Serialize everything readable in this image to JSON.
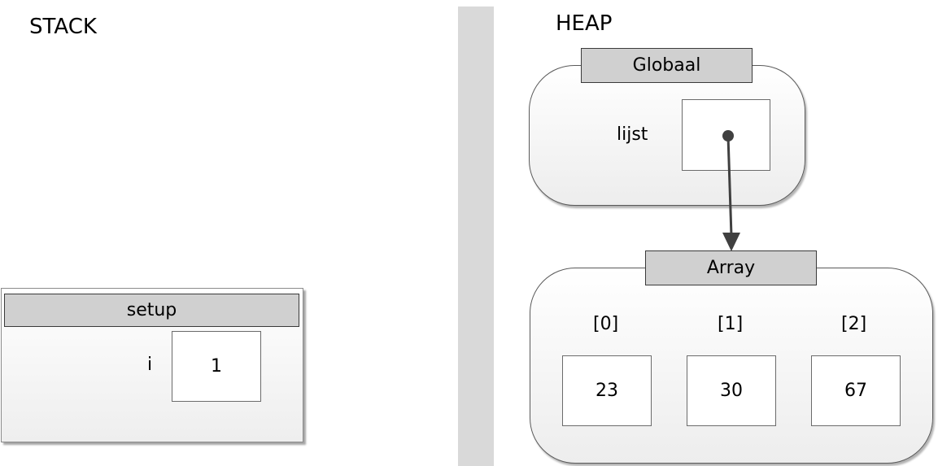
{
  "stack": {
    "title": "STACK",
    "frame": {
      "name": "setup",
      "variables": [
        {
          "name": "i",
          "value": "1"
        }
      ]
    }
  },
  "heap": {
    "title": "HEAP",
    "global": {
      "name": "Globaal",
      "variables": [
        {
          "name": "lijst",
          "value": ""
        }
      ]
    },
    "array": {
      "name": "Array",
      "indices": [
        "[0]",
        "[1]",
        "[2]"
      ],
      "values": [
        "23",
        "30",
        "67"
      ]
    }
  },
  "colors": {
    "divider": "#d9d9d9",
    "tab": "#d0d0d0",
    "arrow": "#404040"
  }
}
